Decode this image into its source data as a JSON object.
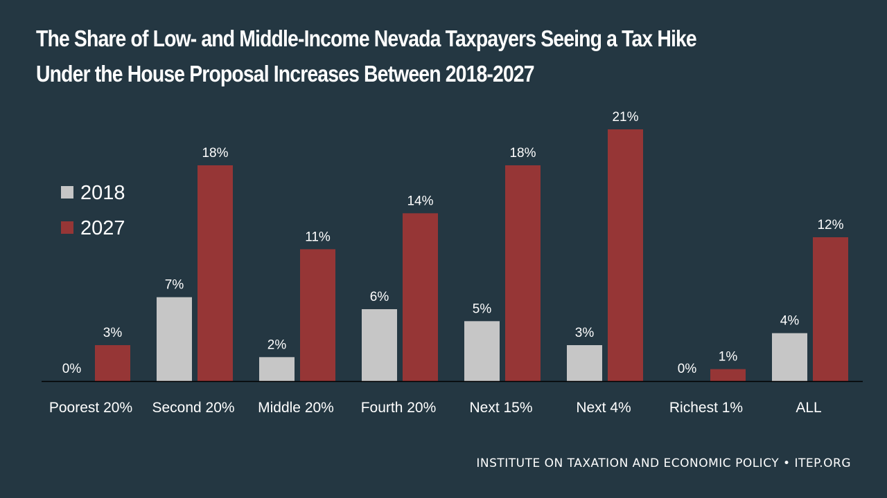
{
  "title_lines": [
    "The Share of Low- and Middle-Income Nevada Taxpayers Seeing a Tax Hike",
    "Under the House Proposal Increases Between 2018-2027"
  ],
  "footer": "INSTITUTE ON TAXATION AND ECONOMIC POLICY • ITEP.ORG",
  "colors": {
    "background": "#243742",
    "series_2018": "#c6c6c6",
    "series_2027": "#963636",
    "axis": "#000000",
    "text": "#ffffff"
  },
  "chart_data": {
    "type": "bar",
    "title": "The Share of Low- and Middle-Income Nevada Taxpayers Seeing a Tax Hike Under the House Proposal Increases Between 2018-2027",
    "categories": [
      "Poorest 20%",
      "Second 20%",
      "Middle 20%",
      "Fourth 20%",
      "Next 15%",
      "Next 4%",
      "Richest 1%",
      "ALL"
    ],
    "series": [
      {
        "name": "2018",
        "values": [
          0,
          7,
          2,
          6,
          5,
          3,
          0,
          4
        ],
        "labels": [
          "0%",
          "7%",
          "2%",
          "6%",
          "5%",
          "3%",
          "0%",
          "4%"
        ]
      },
      {
        "name": "2027",
        "values": [
          3,
          18,
          11,
          14,
          18,
          21,
          1,
          12
        ],
        "labels": [
          "3%",
          "18%",
          "11%",
          "14%",
          "18%",
          "21%",
          "1%",
          "12%"
        ]
      }
    ],
    "xlabel": "",
    "ylabel": "",
    "ylim": [
      0,
      21
    ],
    "grid": false,
    "legend": "top-left",
    "data_labels": true
  }
}
